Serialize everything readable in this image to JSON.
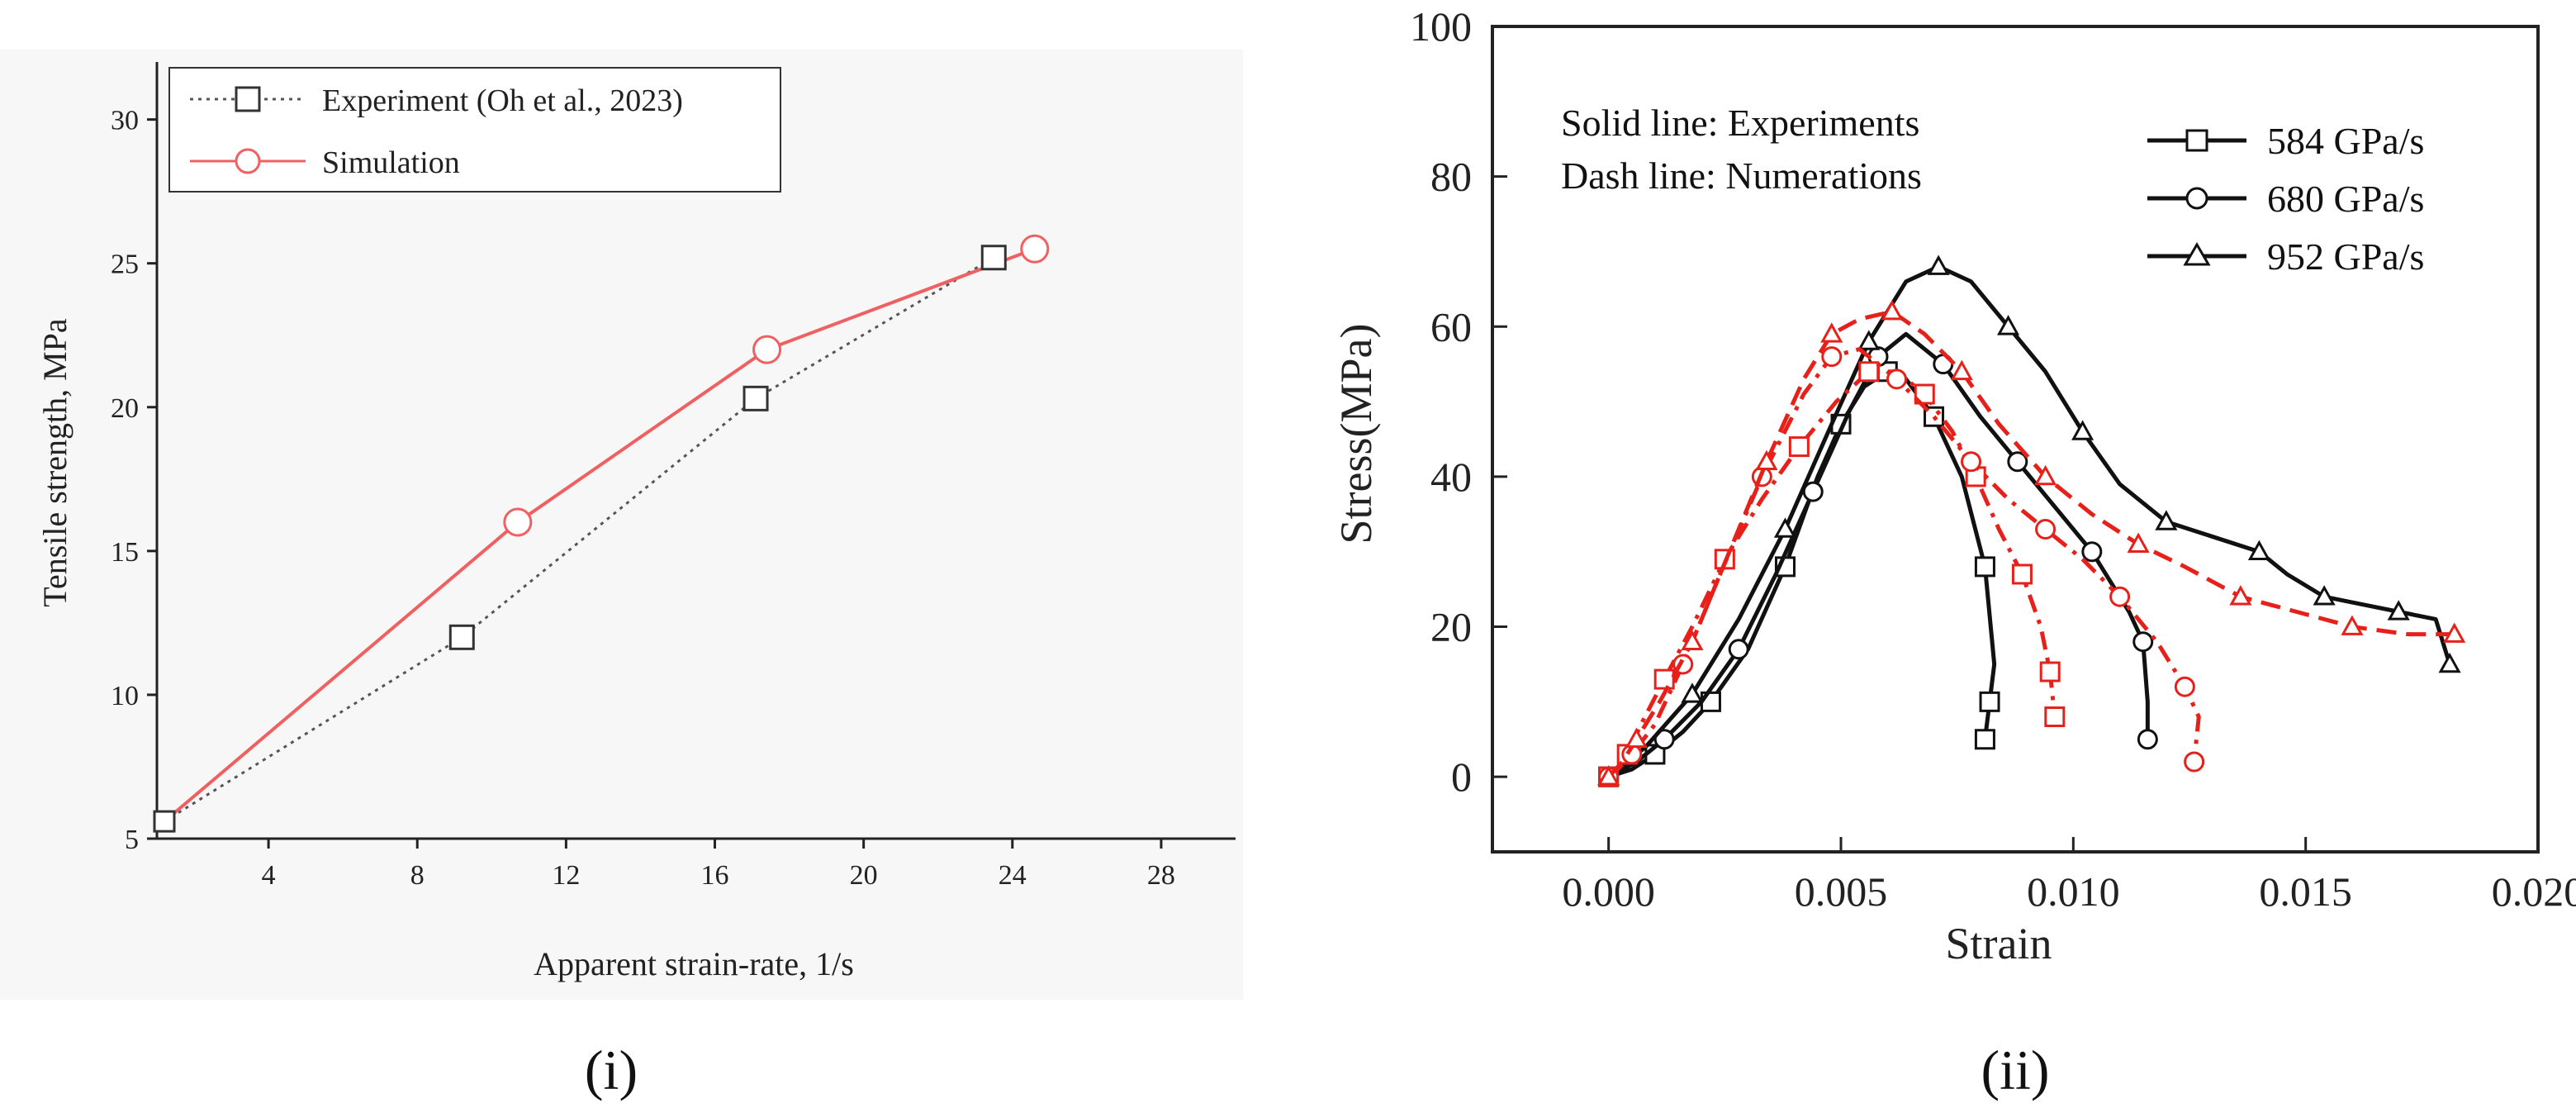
{
  "colors": {
    "experiment": "#555555",
    "simulation": "#f06060",
    "exp_solid": "#111111",
    "num_dash": "#e8201a",
    "legend_red": "#e8201a"
  },
  "panels": [
    {
      "label": "(i)"
    },
    {
      "label": "(ii)"
    }
  ],
  "chart_data": [
    {
      "type": "line",
      "panel": "(i)",
      "title": "",
      "xlabel": "Apparent strain-rate, 1/s",
      "ylabel": "Tensile strength, MPa",
      "xlim": [
        1,
        30
      ],
      "ylim": [
        5,
        32
      ],
      "xticks": [
        4,
        8,
        12,
        16,
        20,
        24,
        28
      ],
      "yticks": [
        5,
        10,
        15,
        20,
        25,
        30
      ],
      "xtick_labels": [
        "4",
        "8",
        "12",
        "16",
        "20",
        "24",
        "28"
      ],
      "ytick_labels": [
        "5",
        "10",
        "15",
        "20",
        "25",
        "30"
      ],
      "legend_position": "top-left",
      "series": [
        {
          "name": "Experiment (Oh et al., 2023)",
          "style": "dotted",
          "marker": "square",
          "x": [
            1.2,
            9.2,
            17.1,
            23.5
          ],
          "y": [
            5.6,
            12.0,
            20.3,
            25.2
          ]
        },
        {
          "name": "Simulation",
          "style": "solid",
          "marker": "circle",
          "x": [
            1.2,
            10.7,
            17.4,
            24.6
          ],
          "y": [
            5.6,
            16.0,
            22.0,
            25.5
          ]
        }
      ]
    },
    {
      "type": "line",
      "panel": "(ii)",
      "title": "",
      "xlabel": "Strain",
      "ylabel": "Stress(MPa)",
      "xlim": [
        -0.0025,
        0.02
      ],
      "ylim": [
        -10,
        100
      ],
      "xticks": [
        0.0,
        0.005,
        0.01,
        0.015,
        0.02
      ],
      "yticks": [
        0,
        20,
        40,
        60,
        80,
        100
      ],
      "xtick_labels": [
        "0.000",
        "0.005",
        "0.010",
        "0.015",
        "0.020"
      ],
      "ytick_labels": [
        "0",
        "20",
        "40",
        "60",
        "80",
        "100"
      ],
      "annotations": [
        "Solid line: Experiments",
        "Dash line: Numerations"
      ],
      "legend_position": "top-right",
      "series": [
        {
          "name": "584 GPa/s",
          "group": "experiment",
          "style": "solid",
          "marker": "square",
          "x": [
            0.0,
            0.0005,
            0.001,
            0.0016,
            0.0022,
            0.003,
            0.0038,
            0.0045,
            0.005,
            0.0055,
            0.006,
            0.0064,
            0.007,
            0.0076,
            0.0081,
            0.0083,
            0.0082,
            0.0081
          ],
          "y": [
            0,
            1,
            3,
            6,
            10,
            17,
            28,
            40,
            47,
            52,
            54,
            53,
            48,
            40,
            28,
            15,
            10,
            5
          ]
        },
        {
          "name": "680 GPa/s",
          "group": "experiment",
          "style": "solid",
          "marker": "circle",
          "x": [
            0.0,
            0.0006,
            0.0012,
            0.002,
            0.0028,
            0.0036,
            0.0044,
            0.0052,
            0.0058,
            0.0064,
            0.0072,
            0.008,
            0.0088,
            0.0096,
            0.0104,
            0.0112,
            0.0115,
            0.0116,
            0.0116
          ],
          "y": [
            0,
            2,
            5,
            10,
            17,
            27,
            38,
            49,
            56,
            59,
            55,
            48,
            42,
            36,
            30,
            22,
            18,
            10,
            5
          ]
        },
        {
          "name": "952 GPa/s",
          "group": "experiment",
          "style": "solid",
          "marker": "triangle",
          "x": [
            0.0,
            0.0008,
            0.0018,
            0.0028,
            0.0038,
            0.0048,
            0.0056,
            0.0064,
            0.0071,
            0.0078,
            0.0086,
            0.0094,
            0.0102,
            0.011,
            0.012,
            0.013,
            0.014,
            0.0146,
            0.0154,
            0.0162,
            0.017,
            0.0178,
            0.0181
          ],
          "y": [
            0,
            4,
            11,
            21,
            33,
            47,
            58,
            66,
            68,
            66,
            60,
            54,
            46,
            39,
            34,
            32,
            30,
            27,
            24,
            23,
            22,
            21,
            15
          ]
        },
        {
          "name": "584 GPa/s numerical",
          "group": "numerical",
          "style": "dashdot",
          "marker": "square",
          "x": [
            0.0,
            0.0002,
            0.0004,
            0.0007,
            0.0012,
            0.0018,
            0.0025,
            0.0033,
            0.0041,
            0.0049,
            0.0056,
            0.0062,
            0.0068,
            0.0074,
            0.0079,
            0.0084,
            0.0089,
            0.0093,
            0.0095,
            0.0096
          ],
          "y": [
            0,
            1,
            3,
            7,
            13,
            20,
            29,
            37,
            44,
            50,
            54,
            54,
            51,
            46,
            40,
            33,
            27,
            20,
            14,
            8
          ]
        },
        {
          "name": "680 GPa/s numerical",
          "group": "numerical",
          "style": "dashdot",
          "marker": "circle",
          "x": [
            0.0,
            0.0002,
            0.0005,
            0.001,
            0.0016,
            0.0024,
            0.0033,
            0.0042,
            0.0048,
            0.0054,
            0.0062,
            0.007,
            0.0078,
            0.0086,
            0.0094,
            0.0102,
            0.011,
            0.0118,
            0.0124,
            0.0127,
            0.0126
          ],
          "y": [
            0,
            1,
            3,
            7,
            15,
            27,
            40,
            51,
            56,
            57,
            53,
            48,
            42,
            37,
            33,
            29,
            24,
            18,
            12,
            8,
            2
          ]
        },
        {
          "name": "952 GPa/s numerical",
          "group": "numerical",
          "style": "dashed",
          "marker": "triangle",
          "x": [
            0.0,
            0.0003,
            0.0006,
            0.0011,
            0.0018,
            0.0026,
            0.0034,
            0.0042,
            0.0048,
            0.0054,
            0.0061,
            0.0068,
            0.0076,
            0.0084,
            0.0094,
            0.0104,
            0.0114,
            0.0124,
            0.0136,
            0.0148,
            0.016,
            0.0172,
            0.0182
          ],
          "y": [
            0,
            2,
            5,
            10,
            18,
            30,
            42,
            53,
            59,
            61,
            62,
            59,
            54,
            47,
            40,
            35,
            31,
            28,
            24,
            22,
            20,
            19,
            19
          ]
        }
      ]
    }
  ]
}
